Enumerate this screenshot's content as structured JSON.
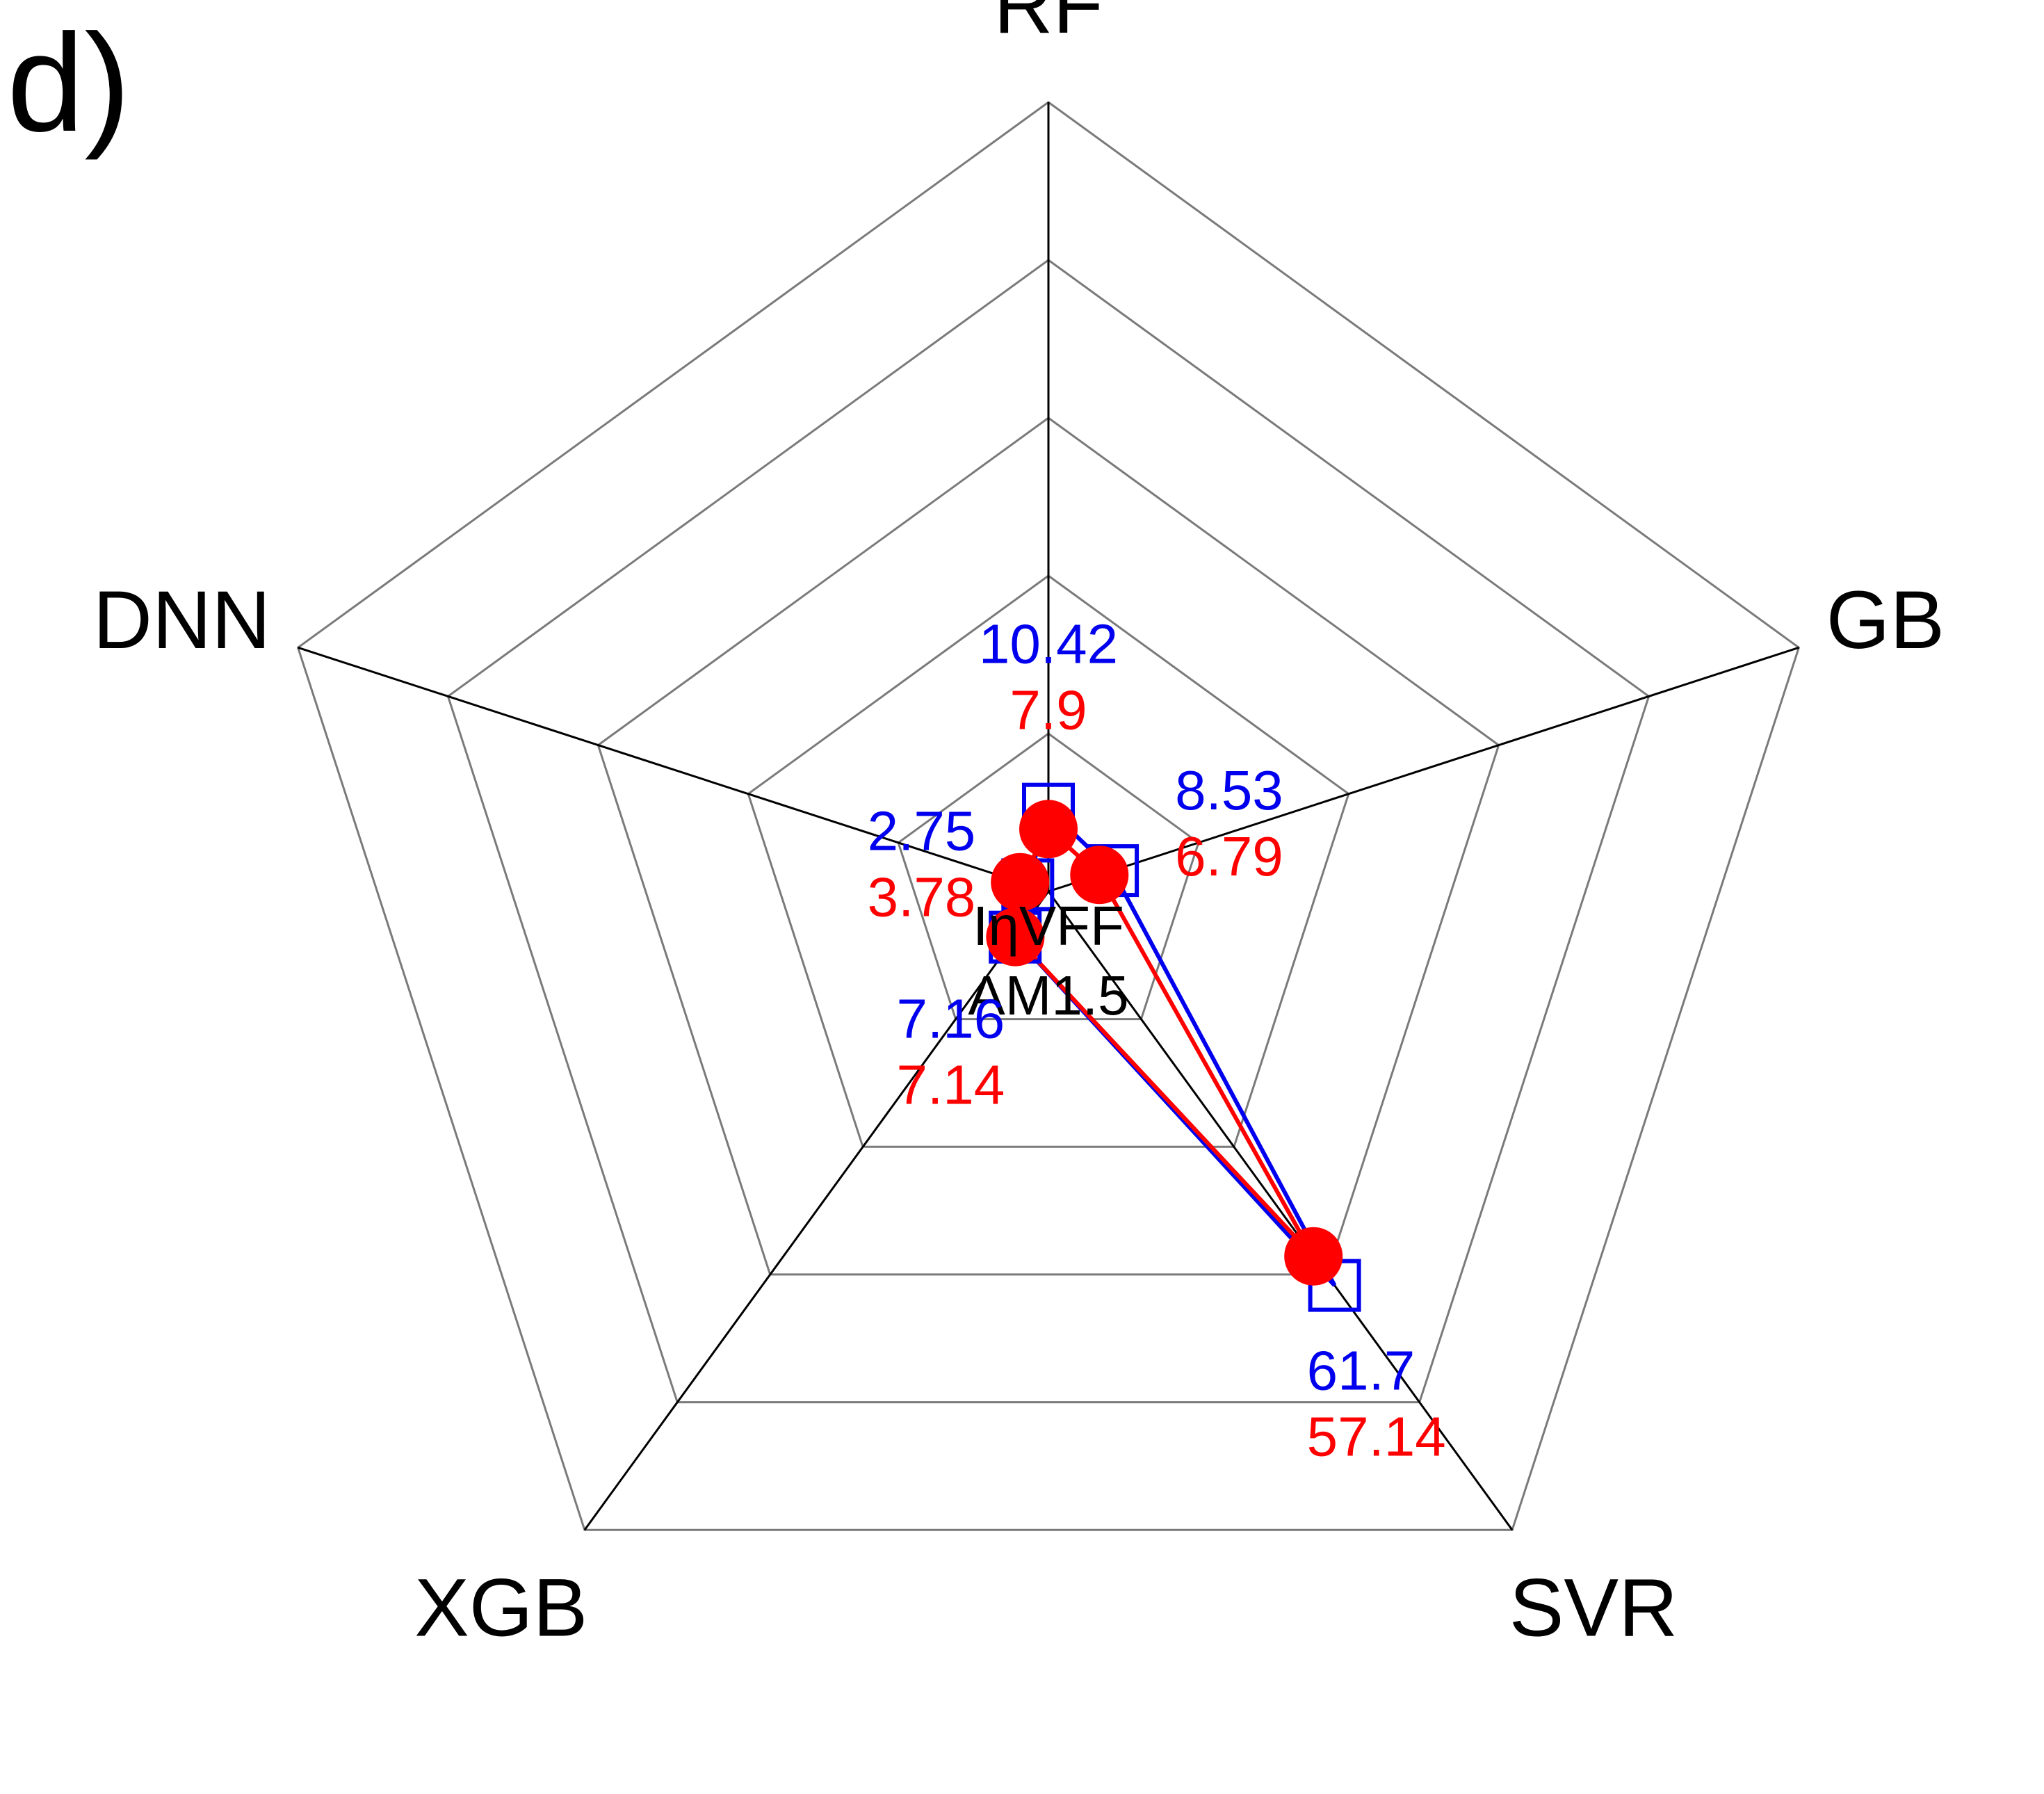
{
  "panel_label": "d)",
  "chart_data": {
    "type": "radar",
    "axes": [
      "RF",
      "GB",
      "SVR",
      "XGB",
      "DNN"
    ],
    "center_label": [
      "IηVFF",
      "AM1.5"
    ],
    "grid": true,
    "rings": 5,
    "series": [
      {
        "values": [
          10.42,
          8.53,
          61.7,
          7.16,
          2.75
        ],
        "labels": [
          "10.42",
          "8.53",
          "61.7",
          "7.16",
          "2.75"
        ],
        "color": "#0000ee",
        "marker": "open-square"
      },
      {
        "values": [
          7.9,
          6.79,
          57.14,
          7.14,
          3.78
        ],
        "labels": [
          "7.9",
          "6.79",
          "57.14",
          "7.14",
          "3.78"
        ],
        "color": "#ff0000",
        "marker": "filled-circle"
      }
    ]
  }
}
